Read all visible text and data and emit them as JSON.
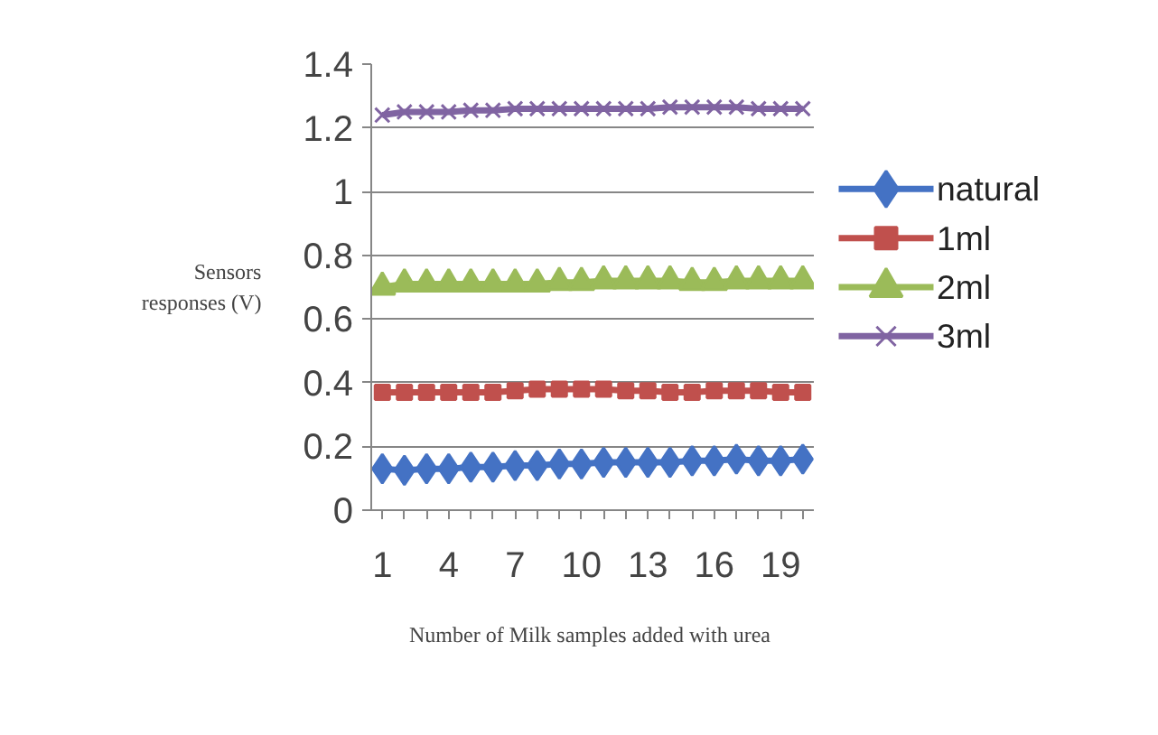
{
  "chart_data": {
    "type": "line",
    "xlabel": "Number of  Milk samples added with urea",
    "ylabel": "Sensors responses (V)",
    "categories": [
      "1",
      null,
      null,
      "4",
      null,
      null,
      "7",
      null,
      null,
      "10",
      null,
      null,
      "13",
      null,
      null,
      "16",
      null,
      null,
      "19",
      null
    ],
    "series": [
      {
        "name": "natural",
        "color": "#4472c4",
        "marker": "diamond",
        "values": [
          0.13,
          0.125,
          0.13,
          0.13,
          0.135,
          0.135,
          0.14,
          0.14,
          0.145,
          0.145,
          0.15,
          0.15,
          0.15,
          0.15,
          0.155,
          0.155,
          0.16,
          0.155,
          0.155,
          0.16
        ]
      },
      {
        "name": "1ml",
        "color": "#c0504d",
        "marker": "square",
        "values": [
          0.37,
          0.37,
          0.37,
          0.37,
          0.37,
          0.37,
          0.375,
          0.38,
          0.38,
          0.38,
          0.38,
          0.375,
          0.375,
          0.37,
          0.37,
          0.375,
          0.375,
          0.375,
          0.37,
          0.37
        ]
      },
      {
        "name": "2ml",
        "color": "#9bbb59",
        "marker": "triangle",
        "values": [
          0.7,
          0.71,
          0.71,
          0.71,
          0.71,
          0.71,
          0.71,
          0.71,
          0.715,
          0.715,
          0.72,
          0.72,
          0.72,
          0.72,
          0.715,
          0.715,
          0.72,
          0.72,
          0.72,
          0.72
        ]
      },
      {
        "name": "3ml",
        "color": "#8064a2",
        "marker": "cross",
        "values": [
          1.24,
          1.25,
          1.25,
          1.25,
          1.255,
          1.255,
          1.26,
          1.26,
          1.26,
          1.26,
          1.26,
          1.26,
          1.26,
          1.265,
          1.265,
          1.265,
          1.265,
          1.26,
          1.26,
          1.26
        ]
      }
    ],
    "ylim": [
      0,
      1.4
    ],
    "yticks": [
      0,
      0.2,
      0.4,
      0.6,
      0.8,
      1,
      1.2,
      1.4
    ],
    "grid": "y",
    "legend": "right",
    "line_style": "solid"
  }
}
